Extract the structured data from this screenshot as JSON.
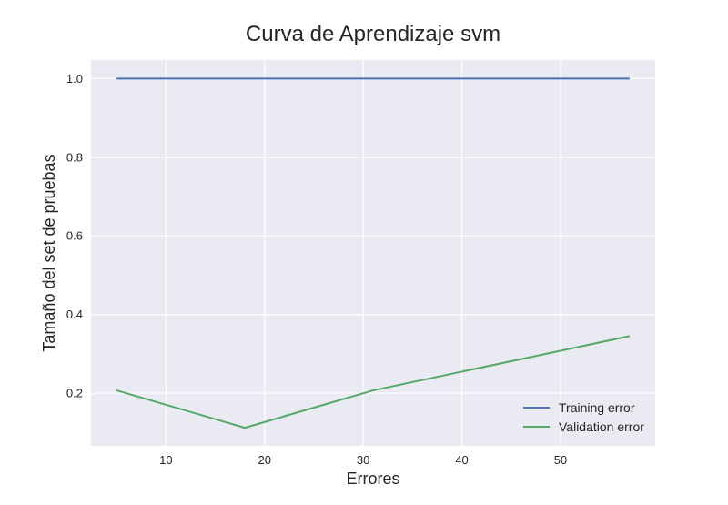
{
  "chart_data": {
    "type": "line",
    "title": "Curva de Aprendizaje svm",
    "xlabel": "Errores",
    "ylabel": "Tamaño del set de pruebas",
    "xlim": [
      2.4,
      59.6
    ],
    "ylim": [
      0.066,
      1.047
    ],
    "xticks": [
      10,
      20,
      30,
      40,
      50
    ],
    "yticks": [
      0.2,
      0.4,
      0.6,
      0.8,
      1.0
    ],
    "x": [
      5,
      18,
      31,
      44,
      57
    ],
    "series": [
      {
        "name": "Training error",
        "color": "#4c72b0",
        "values": [
          1.0,
          1.0,
          1.0,
          1.0,
          1.0
        ]
      },
      {
        "name": "Validation error",
        "color": "#55a868",
        "values": [
          0.207,
          0.112,
          0.207,
          0.276,
          0.345
        ]
      }
    ],
    "grid": true,
    "legend_position": "lower-right",
    "background": "#eaeaf2"
  }
}
